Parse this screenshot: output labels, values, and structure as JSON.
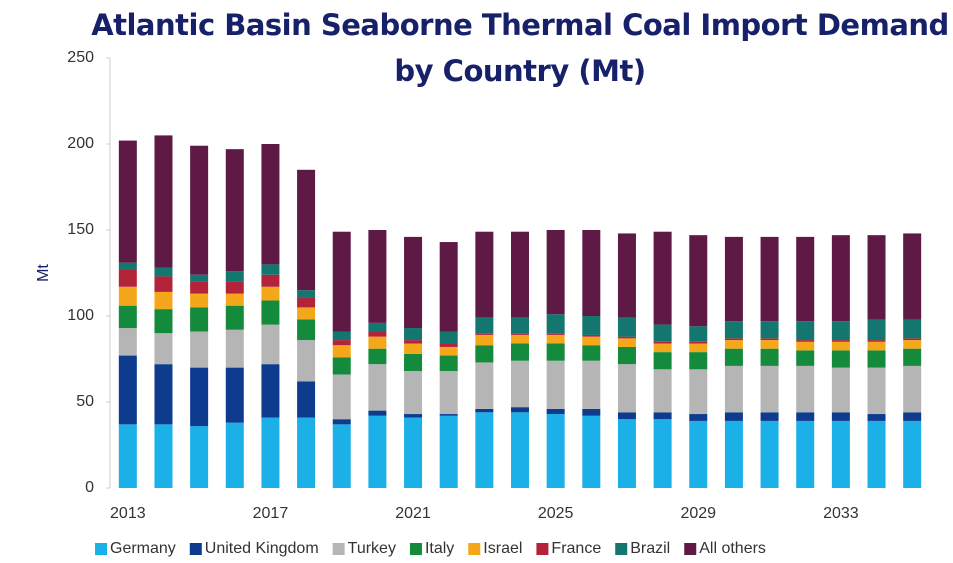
{
  "chart_data": {
    "type": "stacked_bar",
    "title": "Atlantic Basin Seaborne Thermal Coal Import Demand by Country (Mt)",
    "y_label": "Mt",
    "categories": [
      "2013",
      null,
      null,
      null,
      "2017",
      null,
      null,
      null,
      "2021",
      null,
      null,
      null,
      "2025",
      null,
      null,
      null,
      "2029",
      null,
      null,
      null,
      "2033",
      null,
      null
    ],
    "ylim": [
      0,
      250
    ],
    "yticks": [
      0,
      50,
      100,
      150,
      200,
      250
    ],
    "grid": false,
    "legend": "bottom",
    "series": [
      {
        "name": "Germany",
        "color": "#1cb0e8",
        "values": [
          37,
          37,
          36,
          38,
          41,
          41,
          37,
          42,
          41,
          42,
          44,
          44,
          43,
          42,
          40,
          40,
          39,
          39,
          39,
          39,
          39,
          39,
          39
        ]
      },
      {
        "name": "United Kingdom",
        "color": "#0d3b8e",
        "values": [
          40,
          35,
          34,
          32,
          31,
          21,
          3,
          3,
          2,
          1,
          2,
          3,
          3,
          4,
          4,
          4,
          4,
          5,
          5,
          5,
          5,
          4,
          5
        ]
      },
      {
        "name": "Turkey",
        "color": "#b5b5b5",
        "values": [
          16,
          18,
          21,
          22,
          23,
          24,
          26,
          27,
          25,
          25,
          27,
          27,
          28,
          28,
          28,
          25,
          26,
          27,
          27,
          27,
          26,
          27,
          27
        ]
      },
      {
        "name": "Italy",
        "color": "#138a3c",
        "values": [
          13,
          14,
          14,
          14,
          14,
          12,
          10,
          9,
          10,
          9,
          10,
          10,
          10,
          9,
          10,
          10,
          10,
          10,
          10,
          9,
          10,
          10,
          10
        ]
      },
      {
        "name": "Israel",
        "color": "#f5a71b",
        "values": [
          11,
          10,
          8,
          7,
          8,
          7,
          7,
          7,
          6,
          5,
          6,
          5,
          5,
          5,
          5,
          5,
          5,
          5,
          5,
          5,
          5,
          5,
          5
        ]
      },
      {
        "name": "France",
        "color": "#b3243b",
        "values": [
          10,
          9,
          7,
          7,
          7,
          6,
          3,
          3,
          2,
          2,
          1,
          1,
          1,
          1,
          1,
          1,
          1,
          1,
          1,
          1,
          1,
          1,
          1
        ]
      },
      {
        "name": "Brazil",
        "color": "#13766f",
        "values": [
          4,
          5,
          4,
          6,
          6,
          4,
          5,
          5,
          7,
          7,
          9,
          9,
          11,
          11,
          11,
          10,
          9,
          10,
          10,
          11,
          11,
          12,
          11
        ]
      },
      {
        "name": "All others",
        "color": "#5e1945",
        "values": [
          71,
          77,
          75,
          71,
          70,
          70,
          58,
          54,
          53,
          52,
          50,
          50,
          49,
          50,
          49,
          54,
          53,
          49,
          49,
          49,
          50,
          49,
          50
        ]
      }
    ]
  }
}
